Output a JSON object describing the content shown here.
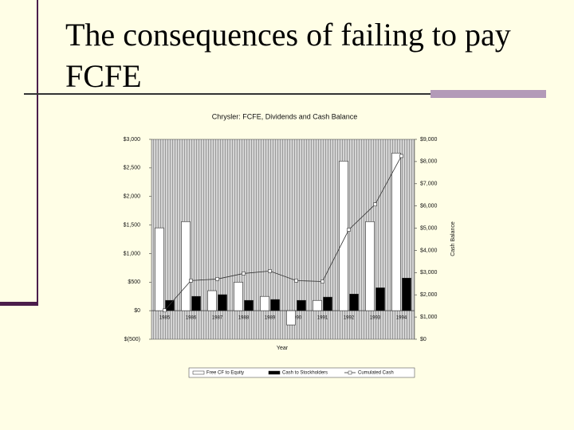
{
  "slide": {
    "title": "The consequences of failing to pay FCFE"
  },
  "chart_data": {
    "type": "bar",
    "title": "Chrysler: FCFE, Dividends and Cash Balance",
    "x_label": "Year",
    "y2_label": "Cash Balance",
    "categories": [
      "1985",
      "1986",
      "1987",
      "1988",
      "1989",
      "1990",
      "1991",
      "1992",
      "1993",
      "1994"
    ],
    "series": [
      {
        "name": "Free CF to Equity",
        "color": "#ffffff",
        "values": [
          1450,
          1560,
          350,
          500,
          250,
          -250,
          180,
          2620,
          1560,
          2760
        ]
      },
      {
        "name": "Cash to Stockholders",
        "color": "#000000",
        "values": [
          180,
          250,
          280,
          180,
          195,
          180,
          237,
          290,
          400,
          570
        ]
      },
      {
        "name": "Cumulated Cash",
        "color": "#333333",
        "type": "line",
        "axis": "y2",
        "values": [
          1300,
          2640,
          2710,
          2960,
          3070,
          2640,
          2600,
          4930,
          6070,
          8250
        ]
      }
    ],
    "ylim": [
      -500,
      3000
    ],
    "yticks": [
      {
        "value": -500,
        "label": "$(500)"
      },
      {
        "value": 0,
        "label": "$0"
      },
      {
        "value": 500,
        "label": "$500"
      },
      {
        "value": 1000,
        "label": "$1,000"
      },
      {
        "value": 1500,
        "label": "$1,500"
      },
      {
        "value": 2000,
        "label": "$2,000"
      },
      {
        "value": 2500,
        "label": "$2,500"
      },
      {
        "value": 3000,
        "label": "$3,000"
      }
    ],
    "y2lim": [
      0,
      9000
    ],
    "y2ticks": [
      {
        "value": 0,
        "label": "$0"
      },
      {
        "value": 1000,
        "label": "$1,000"
      },
      {
        "value": 2000,
        "label": "$2,000"
      },
      {
        "value": 3000,
        "label": "$3,000"
      },
      {
        "value": 4000,
        "label": "$4,000"
      },
      {
        "value": 5000,
        "label": "$5,000"
      },
      {
        "value": 6000,
        "label": "$6,000"
      },
      {
        "value": 7000,
        "label": "$7,000"
      },
      {
        "value": 8000,
        "label": "$8,000"
      },
      {
        "value": 9000,
        "label": "$9,000"
      }
    ]
  }
}
